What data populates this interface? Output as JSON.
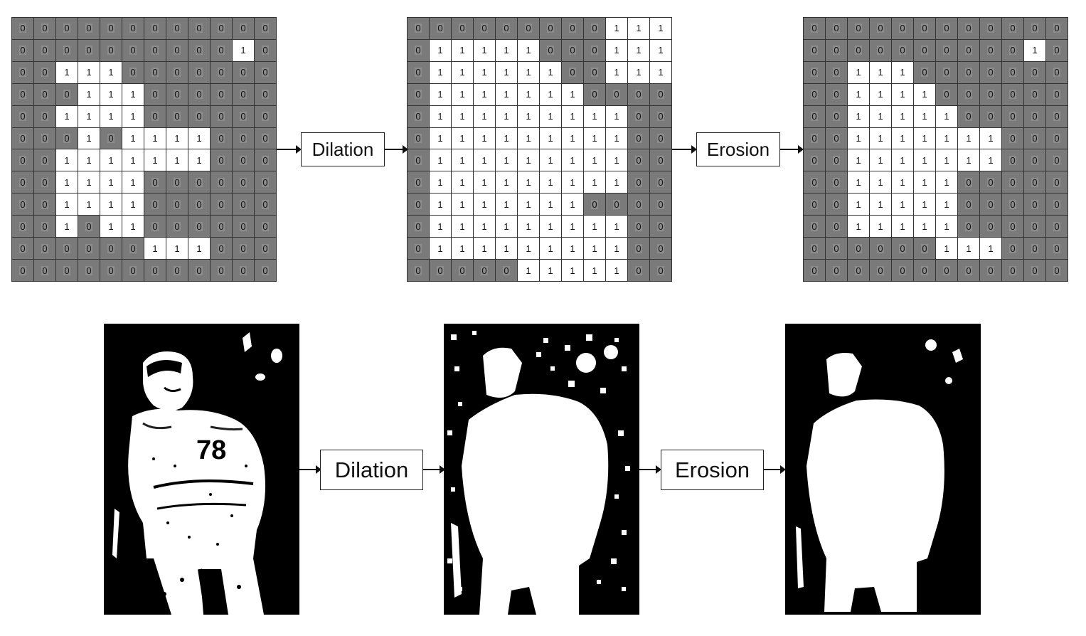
{
  "operations": {
    "top_dilation": "Dilation",
    "top_erosion": "Erosion",
    "bottom_dilation": "Dilation",
    "bottom_erosion": "Erosion"
  },
  "grids": {
    "input": [
      "000000000000",
      "000000000010",
      "001110000000",
      "000111000000",
      "001111000000",
      "000101111000",
      "001111111000",
      "001111000000",
      "001111000000",
      "001011000000",
      "000000111000",
      "000000000000"
    ],
    "dilated": [
      "000000000111",
      "011111000111",
      "011111100111",
      "011111110000",
      "011111111100",
      "011111111100",
      "011111111100",
      "011111111100",
      "011111110000",
      "011111111100",
      "011111111100",
      "000001111100"
    ],
    "eroded": [
      "000000000000",
      "000000000010",
      "001110000000",
      "001111000000",
      "001111100000",
      "001111111000",
      "001111111000",
      "001111100000",
      "001111100000",
      "001111100000",
      "000000111000",
      "000000000000"
    ]
  },
  "colors": {
    "background_cell": "#7a7a7a",
    "foreground_cell": "#ffffff",
    "photo_background": "#000000"
  }
}
